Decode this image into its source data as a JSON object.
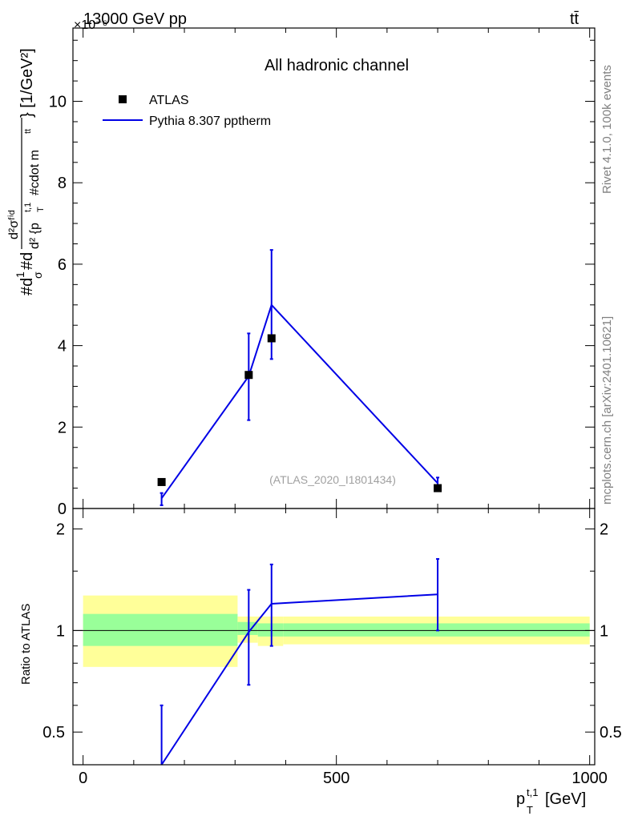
{
  "header": {
    "energy_label": "13000 GeV pp",
    "process_label": "tt̄",
    "exponent_label": "×10⁻⁶"
  },
  "side_labels": {
    "rivet": "Rivet 4.1.0,  100k events",
    "mcplots": "mcplots.cern.ch [arXiv:2401.10621]"
  },
  "colors": {
    "mc_line": "#0000e6",
    "data_marker": "#000000",
    "band_inner": "#99ff99",
    "band_outer": "#ffff99"
  },
  "chart_data": [
    {
      "type": "scatter",
      "title": "All hadronic channel",
      "ylabel": "#d\\frac{1}{\\sigma}#d\\frac{d^2\\sigma^{fid}}{d^2{p_T^{t,1} #cdot m^{tt}}} [1/GeV²]",
      "ylabel_pieces": {
        "unit": "} [1/GeV²]",
        "part1": "#d",
        "part2": "1",
        "part3": "σ",
        "part4": "#d",
        "part5": "d²σᶠⁱᵈ",
        "part6": "d² {p",
        "part7": "T",
        "part8": "t,1",
        "part9": "#cdot m",
        "part10": "tt"
      },
      "y_scale": "1e-6",
      "xlim": [
        -20,
        1010
      ],
      "ylim": [
        0,
        11.8
      ],
      "yticks": [
        0,
        2,
        4,
        6,
        8,
        10
      ],
      "ytick_labels": [
        "0",
        "2",
        "4",
        "6",
        "8",
        "10"
      ],
      "watermark": "(ATLAS_2020_I1801434)",
      "legend_position": "top-left",
      "series": [
        {
          "name": "ATLAS",
          "kind": "markers",
          "x": [
            155,
            327,
            372,
            700
          ],
          "y": [
            0.65,
            3.28,
            4.18,
            0.5
          ]
        },
        {
          "name": "Pythia 8.307 pptherm",
          "kind": "line-with-errors",
          "x": [
            155,
            327,
            372,
            700
          ],
          "y": [
            0.25,
            3.25,
            5.0,
            0.62
          ],
          "yerr_low": [
            0.17,
            1.08,
            1.33,
            0.15
          ],
          "yerr_high": [
            0.13,
            1.05,
            1.35,
            0.14
          ]
        }
      ]
    },
    {
      "type": "line",
      "ylabel": "Ratio to ATLAS",
      "xlabel_main": "p",
      "xlabel_sub": "T",
      "xlabel_sup": "t,1",
      "xlabel_unit": "[GeV]",
      "xlim": [
        -20,
        1010
      ],
      "ylim": [
        0.4,
        2.3
      ],
      "yticks": [
        0.5,
        1,
        2
      ],
      "ytick_labels": [
        "0.5",
        "1",
        "2"
      ],
      "xticks": [
        0,
        500,
        1000
      ],
      "xtick_labels": [
        "0",
        "500",
        "1000"
      ],
      "bands": [
        {
          "x_lo": 0,
          "x_hi": 305,
          "inner_lo": 0.9,
          "inner_hi": 1.12,
          "outer_lo": 0.78,
          "outer_hi": 1.27
        },
        {
          "x_lo": 305,
          "x_hi": 345,
          "inner_lo": 0.97,
          "inner_hi": 1.06,
          "outer_lo": 0.92,
          "outer_hi": 1.1
        },
        {
          "x_lo": 345,
          "x_hi": 395,
          "inner_lo": 0.96,
          "inner_hi": 1.05,
          "outer_lo": 0.9,
          "outer_hi": 1.1
        },
        {
          "x_lo": 395,
          "x_hi": 1000,
          "inner_lo": 0.96,
          "inner_hi": 1.05,
          "outer_lo": 0.91,
          "outer_hi": 1.1
        }
      ],
      "series": [
        {
          "name": "Pythia 8.307 pptherm",
          "x": [
            155,
            327,
            372,
            700
          ],
          "y": [
            0.38,
            0.99,
            1.2,
            1.28
          ],
          "yerr_low": [
            0,
            0.3,
            0.3,
            0.28
          ],
          "yerr_high": [
            0.22,
            0.33,
            0.37,
            0.35
          ]
        }
      ]
    }
  ]
}
